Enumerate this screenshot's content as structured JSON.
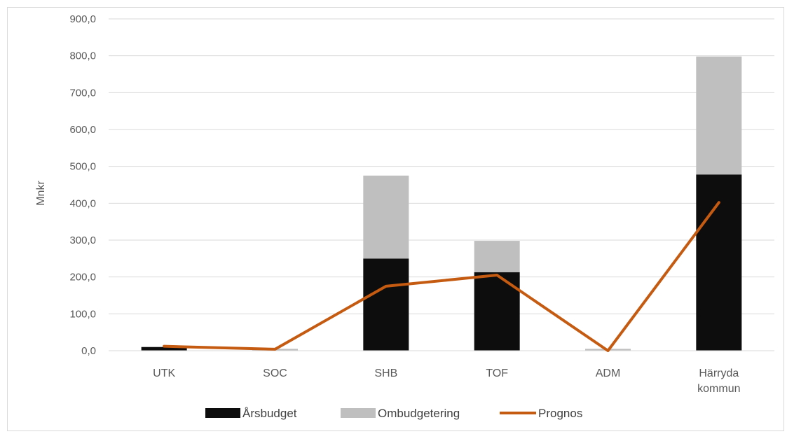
{
  "chart_data": {
    "type": "bar",
    "stacked": true,
    "categories": [
      "UTK",
      "SOC",
      "SHB",
      "TOF",
      "ADM",
      "Härryda kommun"
    ],
    "category_lines": [
      [
        "UTK"
      ],
      [
        "SOC"
      ],
      [
        "SHB"
      ],
      [
        "TOF"
      ],
      [
        "ADM"
      ],
      [
        "Härryda",
        "kommun"
      ]
    ],
    "series": [
      {
        "name": "Årsbudget",
        "kind": "bar",
        "color": "#0d0d0d",
        "values": [
          10,
          0,
          250,
          213,
          0,
          478
        ]
      },
      {
        "name": "Ombudgetering",
        "kind": "bar",
        "color": "#bfbfbf",
        "values": [
          0,
          5,
          225,
          85,
          5,
          320
        ]
      },
      {
        "name": "Prognos",
        "kind": "line",
        "color": "#c55a11",
        "values": [
          12,
          4,
          175,
          205,
          0,
          402
        ]
      }
    ],
    "ylabel": "Mnkr",
    "xlabel": "",
    "ylim": [
      0,
      900
    ],
    "yticks": [
      "0,0",
      "100,0",
      "200,0",
      "300,0",
      "400,0",
      "500,0",
      "600,0",
      "700,0",
      "800,0",
      "900,0"
    ],
    "grid": true,
    "legend_position": "bottom"
  }
}
